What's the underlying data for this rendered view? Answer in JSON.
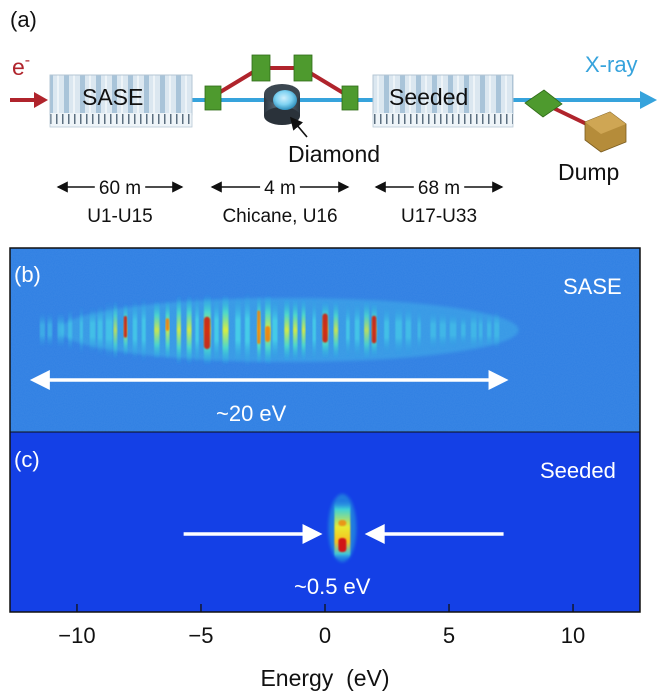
{
  "panel_a": {
    "label": "(a)",
    "electron_label": "e",
    "electron_sup": "-",
    "sase_label": "SASE",
    "seeded_label": "Seeded",
    "xray_label": "X-ray",
    "diamond_label": "Diamond",
    "dump_label": "Dump",
    "segments": [
      {
        "length": "60 m",
        "name": "U1-U15"
      },
      {
        "length": "4 m",
        "name": "Chicane, U16"
      },
      {
        "length": "68 m",
        "name": "U17-U33"
      }
    ],
    "colors": {
      "electron": "#b0242c",
      "xray": "#36a3dc",
      "magnet": "#4e9a2e",
      "dump": "#b58c3a"
    }
  },
  "panel_b": {
    "label": "(b)",
    "mode_label": "SASE",
    "bandwidth_label": "~20 eV",
    "bandwidth_ev": 20,
    "energy_range_ev": [
      -12,
      7.5
    ]
  },
  "panel_c": {
    "label": "(c)",
    "mode_label": "Seeded",
    "bandwidth_label": "~0.5 eV",
    "bandwidth_ev": 0.5,
    "center_ev": 0.7
  },
  "axis": {
    "xlabel": "Energy  (eV)",
    "xlim": [
      -12.7,
      12.7
    ],
    "ticks": [
      -10,
      -5,
      0,
      5,
      10
    ],
    "tick_labels": [
      "−10",
      "−5",
      "0",
      "5",
      "10"
    ]
  }
}
